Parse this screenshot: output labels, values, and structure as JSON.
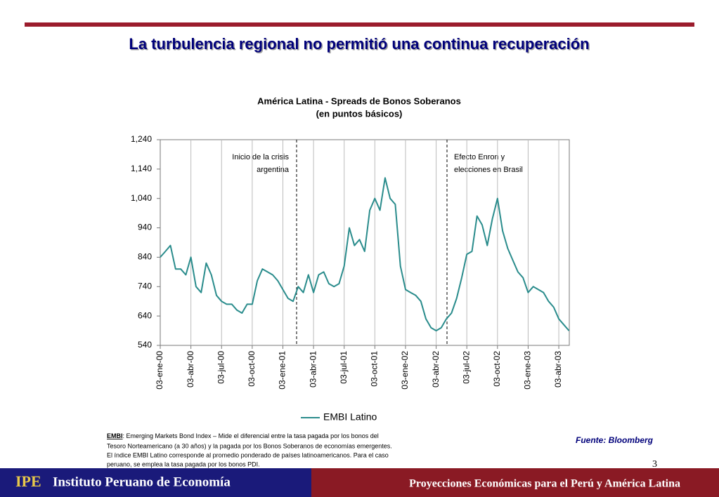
{
  "slide_title": "La turbulencia regional no permitió una continua recuperación",
  "chart_data": {
    "type": "line",
    "title": "América Latina  - Spreads de Bonos Soberanos",
    "subtitle": "(en puntos básicos)",
    "categories": [
      "03-ene-00",
      null,
      null,
      null,
      null,
      null,
      "03-abr-00",
      null,
      null,
      null,
      null,
      null,
      "03-jul-00",
      null,
      null,
      null,
      null,
      null,
      "03-oct-00",
      null,
      null,
      null,
      null,
      null,
      "03-ene-01",
      null,
      null,
      null,
      null,
      null,
      "03-abr-01",
      null,
      null,
      null,
      null,
      null,
      "03-jul-01",
      null,
      null,
      null,
      null,
      null,
      "03-oct-01",
      null,
      null,
      null,
      null,
      null,
      "03-ene-02",
      null,
      null,
      null,
      null,
      null,
      "03-abr-02",
      null,
      null,
      null,
      null,
      null,
      "03-jul-02",
      null,
      null,
      null,
      null,
      null,
      "03-oct-02",
      null,
      null,
      null,
      null,
      null,
      "03-ene-03",
      null,
      null,
      null,
      null,
      null,
      "03-abr-03",
      null,
      null
    ],
    "series": [
      {
        "name": "EMBI Latino",
        "color": "#2a8c8c",
        "values": [
          840,
          860,
          880,
          800,
          800,
          780,
          840,
          740,
          720,
          820,
          780,
          710,
          690,
          680,
          680,
          660,
          650,
          680,
          680,
          760,
          800,
          790,
          780,
          760,
          730,
          700,
          690,
          740,
          720,
          780,
          720,
          780,
          790,
          750,
          740,
          750,
          810,
          940,
          880,
          900,
          860,
          1000,
          1040,
          1000,
          1110,
          1040,
          1020,
          810,
          730,
          720,
          710,
          690,
          630,
          600,
          590,
          600,
          630,
          650,
          700,
          770,
          850,
          860,
          980,
          950,
          880,
          970,
          1040,
          930,
          870,
          830,
          790,
          770,
          720,
          740,
          730,
          720,
          690,
          670,
          630,
          610,
          590
        ]
      }
    ],
    "ylim": [
      540,
      1240
    ],
    "yticks": [
      540,
      640,
      740,
      840,
      940,
      {
        "value": 1040,
        "label": "1,040"
      },
      {
        "value": 1140,
        "label": "1,140"
      },
      {
        "value": 1240,
        "label": "1,240"
      }
    ],
    "grid": true,
    "annotations": [
      {
        "lines": [
          "Inicio de la crisis",
          "argentina"
        ]
      },
      {
        "lines": [
          "Efecto Enron y",
          "elecciones en Brasil"
        ]
      }
    ]
  },
  "footnote": {
    "term": "EMBI",
    "lines": [
      ": Emerging Markets Bond Index – Mide el diferencial entre la tasa pagada por los bonos del",
      "Tesoro Norteamericano (a 30 años) y la pagada por los Bonos Soberanos de economías emergentes.",
      "El índice EMBI Latino corresponde al promedio ponderado de países latinoamericanos. Para el caso",
      "peruano, se emplea la tasa pagada por los bonos PDI."
    ]
  },
  "source": "Fuente: Bloomberg",
  "page": 3,
  "banner": {
    "logo": "IPE",
    "org": "Instituto Peruano de Economía",
    "text": "Proyecciones Económicas para el Perú y América Latina"
  }
}
